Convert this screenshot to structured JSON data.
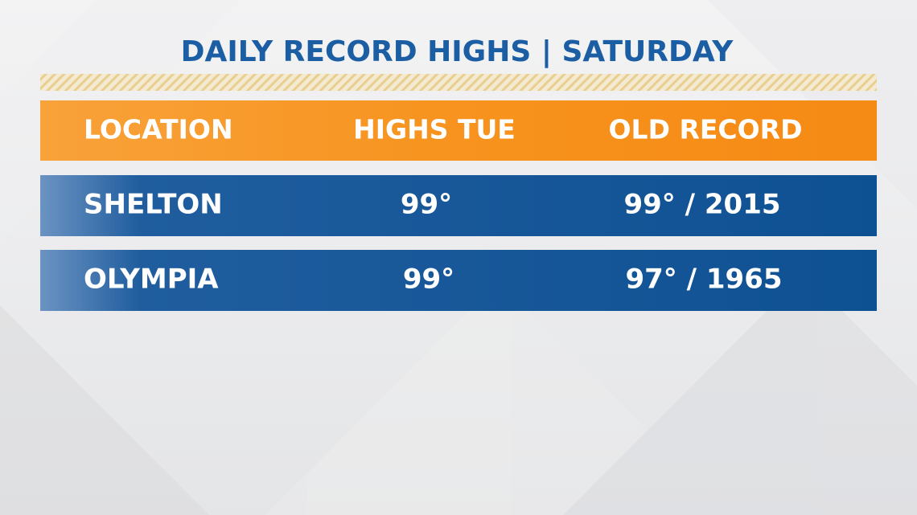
{
  "header": {
    "title": "DAILY RECORD HIGHS | SATURDAY"
  },
  "table": {
    "columns": [
      "LOCATION",
      "HIGHS TUE",
      "OLD RECORD"
    ],
    "rows": [
      [
        "SHELTON",
        "99°",
        "99° / 2015"
      ],
      [
        "OLYMPIA",
        "99°",
        "97° / 1965"
      ]
    ]
  }
}
